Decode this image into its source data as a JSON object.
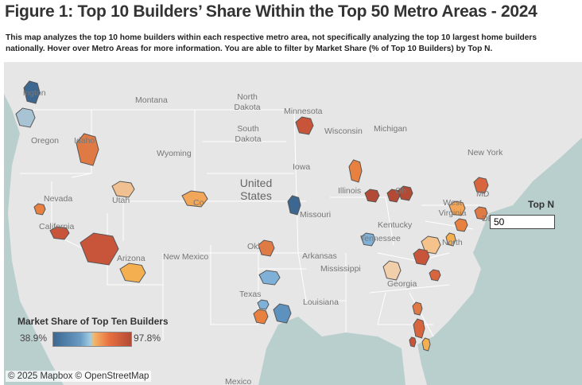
{
  "title": "Figure 1: Top 10 Builders’ Share Within the Top 50 Metro Areas - 2024",
  "description": "This map analyzes the top 10 home builders within each respective metro area, not specifically analyzing the top 10 largest home builders nationally. Hover over Metro Areas for more information. You are able to filter by Market Share (% of Top 10 Builders) by Top N.",
  "map": {
    "place_labels": [
      "ington",
      "Montana",
      "North Dakota",
      "Oregon",
      "Idaho",
      "South Dakota",
      "Minnesota",
      "Wisconsin",
      "Michigan",
      "New York",
      "Wyoming",
      "Iowa",
      "Nevada",
      "Utah",
      "Co",
      "United States",
      "Illinois",
      "Oh",
      "West Virginia",
      "Missouri",
      "Kentucky",
      "California",
      "Okl",
      "Arkansas",
      "Tennessee",
      "North",
      "Arizona",
      "New Mexico",
      "Mississippi",
      "Georgia",
      "Texas",
      "Louisiana",
      "Mexico",
      "MD",
      "DE"
    ],
    "attribution": "© 2025 Mapbox  © OpenStreetMap",
    "colors": {
      "sea": "#b9cfcd",
      "land": "#e6e6e6",
      "low": "#3b6791",
      "mid": "#f4b76a",
      "high": "#b24a35"
    }
  },
  "legend": {
    "title": "Market Share of Top Ten Builders",
    "min": "38.9%",
    "max": "97.8%"
  },
  "filter": {
    "label": "Top N",
    "value": "50"
  }
}
